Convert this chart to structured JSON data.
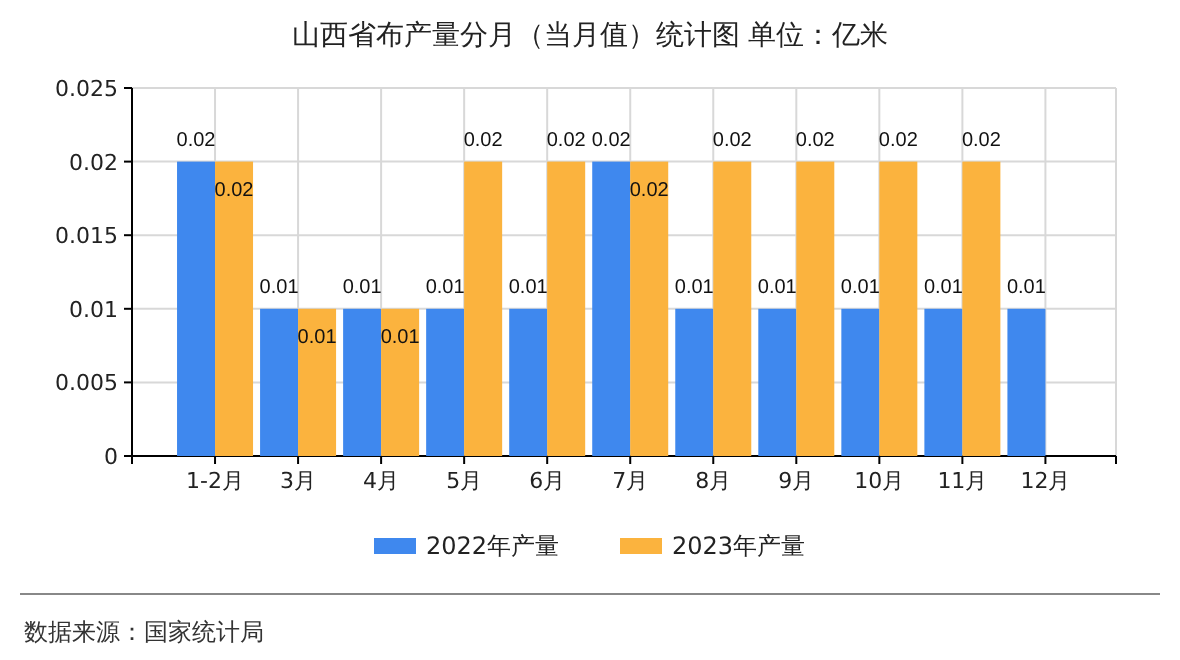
{
  "chart_data": {
    "type": "bar",
    "title": "山西省布产量分月（当月值）统计图 单位：亿米",
    "categories": [
      "1-2月",
      "3月",
      "4月",
      "5月",
      "6月",
      "7月",
      "8月",
      "9月",
      "10月",
      "11月",
      "12月"
    ],
    "series": [
      {
        "name": "2022年产量",
        "color": "#3f88ee",
        "values": [
          0.02,
          0.01,
          0.01,
          0.01,
          0.01,
          0.02,
          0.01,
          0.01,
          0.01,
          0.01,
          0.01
        ]
      },
      {
        "name": "2023年产量",
        "color": "#fbb33e",
        "values": [
          0.02,
          0.01,
          0.01,
          0.02,
          0.02,
          0.02,
          0.02,
          0.02,
          0.02,
          0.02,
          null
        ]
      }
    ],
    "ylim": [
      0,
      0.025
    ],
    "yticks": [
      0,
      0.005,
      0.01,
      0.015,
      0.02,
      0.025
    ],
    "grid": true,
    "legend": "bottom",
    "data_labels": true,
    "annotations": [
      "数据来源：国家统计局"
    ]
  }
}
